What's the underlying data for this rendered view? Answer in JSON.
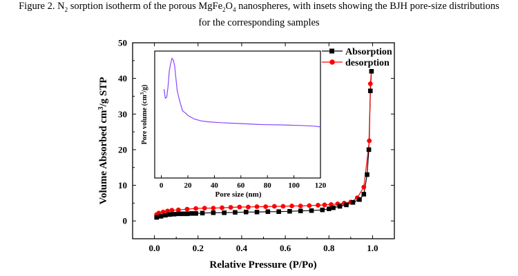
{
  "caption": {
    "label": "Figure 2.",
    "text_parts": [
      " N",
      "2",
      " sorption isotherm of the porous MgFe",
      "2",
      "O",
      "4",
      " nanospheres, with insets showing the BJH pore-size distributions"
    ],
    "line2": "for the corresponding samples"
  },
  "chart_data": [
    {
      "type": "line",
      "title": "",
      "xlabel": "Relative Pressure (P/Po)",
      "ylabel_parts": [
        "Volume Absorbed cm",
        "3",
        "/g STP"
      ],
      "xlim": [
        -0.1,
        1.1
      ],
      "ylim": [
        -5,
        50
      ],
      "x_ticks": [
        "0.0",
        "0.2",
        "0.4",
        "0.6",
        "0.8",
        "1.0"
      ],
      "y_ticks": [
        "0",
        "10",
        "20",
        "30",
        "40",
        "50"
      ],
      "grid": false,
      "legend_position": "top-right",
      "series": [
        {
          "name": "Absorption",
          "color": "#000000",
          "marker": "square",
          "points": [
            [
              0.01,
              1.0
            ],
            [
              0.03,
              1.3
            ],
            [
              0.05,
              1.6
            ],
            [
              0.07,
              1.8
            ],
            [
              0.09,
              1.9
            ],
            [
              0.11,
              2.0
            ],
            [
              0.13,
              2.0
            ],
            [
              0.15,
              2.0
            ],
            [
              0.17,
              2.1
            ],
            [
              0.19,
              2.1
            ],
            [
              0.22,
              2.2
            ],
            [
              0.27,
              2.3
            ],
            [
              0.32,
              2.3
            ],
            [
              0.37,
              2.4
            ],
            [
              0.42,
              2.5
            ],
            [
              0.47,
              2.5
            ],
            [
              0.52,
              2.6
            ],
            [
              0.57,
              2.6
            ],
            [
              0.62,
              2.7
            ],
            [
              0.67,
              2.8
            ],
            [
              0.72,
              2.9
            ],
            [
              0.77,
              3.1
            ],
            [
              0.8,
              3.4
            ],
            [
              0.82,
              3.7
            ],
            [
              0.85,
              4.1
            ],
            [
              0.88,
              4.5
            ],
            [
              0.91,
              5.2
            ],
            [
              0.94,
              6.0
            ],
            [
              0.96,
              7.5
            ],
            [
              0.975,
              13.0
            ],
            [
              0.983,
              20.0
            ],
            [
              0.99,
              36.5
            ],
            [
              0.995,
              42.0
            ]
          ]
        },
        {
          "name": "desorption",
          "color": "#ff0000",
          "marker": "circle",
          "points": [
            [
              0.995,
              42.0
            ],
            [
              0.99,
              38.5
            ],
            [
              0.985,
              22.5
            ],
            [
              0.96,
              9.5
            ],
            [
              0.93,
              6.5
            ],
            [
              0.9,
              5.3
            ],
            [
              0.87,
              5.0
            ],
            [
              0.84,
              4.8
            ],
            [
              0.81,
              4.6
            ],
            [
              0.78,
              4.5
            ],
            [
              0.75,
              4.4
            ],
            [
              0.71,
              4.3
            ],
            [
              0.67,
              4.2
            ],
            [
              0.63,
              4.2
            ],
            [
              0.59,
              4.1
            ],
            [
              0.55,
              4.1
            ],
            [
              0.51,
              4.0
            ],
            [
              0.47,
              4.0
            ],
            [
              0.43,
              3.9
            ],
            [
              0.39,
              3.9
            ],
            [
              0.35,
              3.8
            ],
            [
              0.31,
              3.7
            ],
            [
              0.27,
              3.6
            ],
            [
              0.23,
              3.6
            ],
            [
              0.19,
              3.5
            ],
            [
              0.15,
              3.3
            ],
            [
              0.11,
              3.1
            ],
            [
              0.08,
              3.0
            ],
            [
              0.06,
              2.8
            ],
            [
              0.04,
              2.5
            ],
            [
              0.02,
              2.2
            ],
            [
              0.01,
              1.8
            ]
          ]
        }
      ]
    },
    {
      "type": "line",
      "title": "",
      "xlabel": "Pore size (nm)",
      "ylabel_parts": [
        "Pore volume (cm",
        "3",
        "/g)"
      ],
      "xlim": [
        -5,
        120
      ],
      "ylim": [
        0.5,
        1.2
      ],
      "x_ticks": [
        "0",
        "20",
        "40",
        "60",
        "80",
        "100",
        "120"
      ],
      "series": [
        {
          "name": "",
          "color": "#8844ff",
          "points": [
            [
              2.5,
              0.97
            ],
            [
              2.0,
              0.99
            ],
            [
              3.0,
              0.94
            ],
            [
              4.0,
              0.945
            ],
            [
              5.0,
              1.0
            ],
            [
              6.0,
              1.09
            ],
            [
              7.0,
              1.13
            ],
            [
              8.0,
              1.16
            ],
            [
              9.0,
              1.15
            ],
            [
              10.0,
              1.12
            ],
            [
              12.0,
              0.98
            ],
            [
              14.0,
              0.92
            ],
            [
              16.0,
              0.87
            ],
            [
              18.0,
              0.86
            ],
            [
              20.0,
              0.845
            ],
            [
              25.0,
              0.825
            ],
            [
              30.0,
              0.815
            ],
            [
              35.0,
              0.81
            ],
            [
              45.0,
              0.805
            ],
            [
              60.0,
              0.8
            ],
            [
              75.0,
              0.795
            ],
            [
              90.0,
              0.793
            ],
            [
              105.0,
              0.79
            ],
            [
              115.0,
              0.786
            ],
            [
              120.0,
              0.782
            ]
          ]
        }
      ]
    }
  ]
}
